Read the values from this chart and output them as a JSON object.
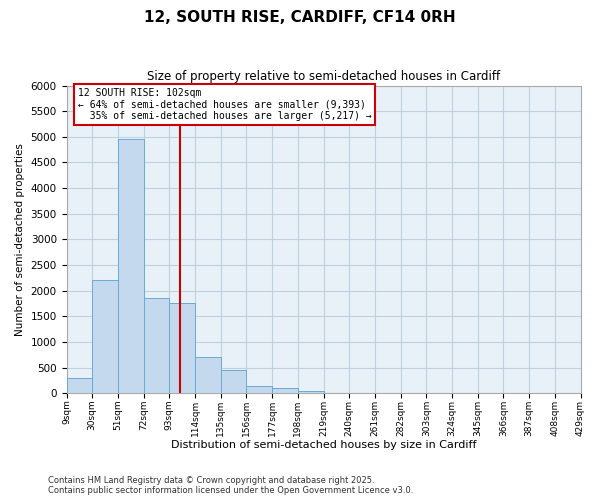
{
  "title": "12, SOUTH RISE, CARDIFF, CF14 0RH",
  "subtitle": "Size of property relative to semi-detached houses in Cardiff",
  "xlabel": "Distribution of semi-detached houses by size in Cardiff",
  "ylabel": "Number of semi-detached properties",
  "property_size": 102,
  "property_label": "12 SOUTH RISE: 102sqm",
  "pct_smaller": 64,
  "pct_larger": 35,
  "n_smaller": 9393,
  "n_larger": 5217,
  "footnote1": "Contains HM Land Registry data © Crown copyright and database right 2025.",
  "footnote2": "Contains public sector information licensed under the Open Government Licence v3.0.",
  "bin_edges": [
    9,
    30,
    51,
    72,
    93,
    114,
    135,
    156,
    177,
    198,
    219,
    240,
    261,
    282,
    303,
    324,
    345,
    366,
    387,
    408,
    429
  ],
  "bin_labels": [
    "9sqm",
    "30sqm",
    "51sqm",
    "72sqm",
    "93sqm",
    "114sqm",
    "135sqm",
    "156sqm",
    "177sqm",
    "198sqm",
    "219sqm",
    "240sqm",
    "261sqm",
    "282sqm",
    "303sqm",
    "324sqm",
    "345sqm",
    "366sqm",
    "387sqm",
    "408sqm",
    "429sqm"
  ],
  "counts": [
    300,
    2200,
    4950,
    1850,
    1750,
    700,
    450,
    150,
    100,
    50,
    0,
    0,
    0,
    0,
    0,
    0,
    0,
    0,
    0,
    0
  ],
  "bar_color": "#c5d9ee",
  "bar_edge_color": "#6aaad4",
  "vline_color": "#cc0000",
  "box_edge_color": "#cc0000",
  "grid_color": "#c0d0e0",
  "bg_color": "#e8f1f8",
  "ylim_max": 6000,
  "yticks": [
    0,
    500,
    1000,
    1500,
    2000,
    2500,
    3000,
    3500,
    4000,
    4500,
    5000,
    5500,
    6000
  ]
}
